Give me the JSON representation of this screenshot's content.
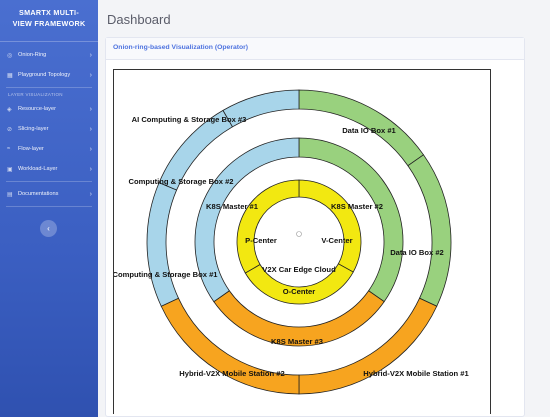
{
  "sidebar": {
    "brand_line1": "SMARTX MULTI-",
    "brand_line2": "VIEW FRAMEWORK",
    "items_top": [
      {
        "label": "Onion-Ring",
        "icon": "circle-icon"
      },
      {
        "label": "Playground Topology",
        "icon": "grid-icon"
      }
    ],
    "section_title": "LAYER VISUALIZATION",
    "items_layers": [
      {
        "label": "Resource-layer",
        "icon": "layers-icon"
      },
      {
        "label": "Slicing-layer",
        "icon": "slice-icon"
      },
      {
        "label": "Flow-layer",
        "icon": "flow-icon"
      },
      {
        "label": "Workload-Layer",
        "icon": "workload-icon"
      }
    ],
    "items_bottom": [
      {
        "label": "Documentations",
        "icon": "doc-icon"
      }
    ],
    "collapse_icon": "chevron-left-icon"
  },
  "header": {
    "title": "Dashboard"
  },
  "card": {
    "title": "Onion-ring-based Visualization (Operator)"
  },
  "chart_data": {
    "type": "onion-ring",
    "rings": [
      {
        "name": "outer",
        "segments": [
          {
            "label": "Data IO Box #1",
            "color": "#99d17e"
          },
          {
            "label": "Data IO Box #2",
            "color": "#99d17e"
          },
          {
            "label": "Hybrid-V2X Mobile Station #1",
            "color": "#f7a41f"
          },
          {
            "label": "Hybrid-V2X Mobile Station #2",
            "color": "#f7a41f"
          },
          {
            "label": "Computing & Storage Box #1",
            "color": "#a8d5ea"
          },
          {
            "label": "Computing & Storage Box #2",
            "color": "#a8d5ea"
          },
          {
            "label": "AI Computing & Storage Box #3",
            "color": "#a8d5ea"
          }
        ]
      },
      {
        "name": "middle",
        "segments": [
          {
            "label": "K8S Master #2",
            "color": "#99d17e"
          },
          {
            "label": "K8S Master #3",
            "color": "#f7a41f"
          },
          {
            "label": "K8S Master #1",
            "color": "#a8d5ea"
          }
        ]
      },
      {
        "name": "inner",
        "segments": [
          {
            "label": "V-Center",
            "color": "#f2e811"
          },
          {
            "label": "O-Center",
            "color": "#f2e811"
          },
          {
            "label": "P-Center",
            "color": "#f2e811"
          }
        ]
      }
    ],
    "center_label": "V2X Car Edge Cloud"
  }
}
